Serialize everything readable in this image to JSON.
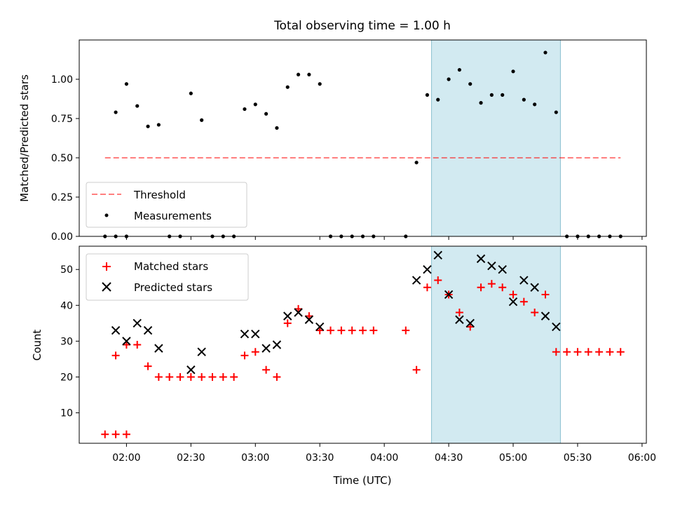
{
  "chart_data": [
    {
      "type": "scatter",
      "title": "Total observing time = 1.00 h",
      "xlabel": "",
      "ylabel": "Matched/Predicted stars",
      "xlim": [
        "01:38",
        "06:02"
      ],
      "ylim": [
        0,
        1.25
      ],
      "grid": false,
      "legend": "lower-left",
      "highlight_span": [
        "04:22",
        "05:22"
      ],
      "highlight_color": "#add8e6",
      "yticks": [
        "0.00",
        "0.25",
        "0.50",
        "0.75",
        "1.00"
      ],
      "threshold": {
        "name": "Threshold",
        "value": 0.5,
        "x_range": [
          "01:50",
          "05:50"
        ],
        "color": "#ff0000"
      },
      "series": [
        {
          "name": "Measurements",
          "marker": "dot",
          "color": "#000000",
          "points": [
            [
              "01:50",
              0.0
            ],
            [
              "01:55",
              0.0
            ],
            [
              "02:00",
              0.0
            ],
            [
              "01:55",
              0.79
            ],
            [
              "02:00",
              0.97
            ],
            [
              "02:05",
              0.83
            ],
            [
              "02:10",
              0.7
            ],
            [
              "02:15",
              0.71
            ],
            [
              "02:20",
              0.0
            ],
            [
              "02:25",
              0.0
            ],
            [
              "02:30",
              0.91
            ],
            [
              "02:35",
              0.74
            ],
            [
              "02:40",
              0.0
            ],
            [
              "02:45",
              0.0
            ],
            [
              "02:50",
              0.0
            ],
            [
              "02:55",
              0.81
            ],
            [
              "03:00",
              0.84
            ],
            [
              "03:05",
              0.78
            ],
            [
              "03:10",
              0.69
            ],
            [
              "03:15",
              0.95
            ],
            [
              "03:20",
              1.03
            ],
            [
              "03:25",
              1.03
            ],
            [
              "03:30",
              0.97
            ],
            [
              "03:35",
              0.0
            ],
            [
              "03:40",
              0.0
            ],
            [
              "03:45",
              0.0
            ],
            [
              "03:50",
              0.0
            ],
            [
              "03:55",
              0.0
            ],
            [
              "04:10",
              0.0
            ],
            [
              "04:15",
              0.47
            ],
            [
              "04:20",
              0.9
            ],
            [
              "04:25",
              0.87
            ],
            [
              "04:30",
              1.0
            ],
            [
              "04:35",
              1.06
            ],
            [
              "04:40",
              0.97
            ],
            [
              "04:45",
              0.85
            ],
            [
              "04:50",
              0.9
            ],
            [
              "04:55",
              0.9
            ],
            [
              "05:00",
              1.05
            ],
            [
              "05:05",
              0.87
            ],
            [
              "05:10",
              0.84
            ],
            [
              "05:15",
              1.17
            ],
            [
              "05:20",
              0.79
            ],
            [
              "05:25",
              0.0
            ],
            [
              "05:30",
              0.0
            ],
            [
              "05:35",
              0.0
            ],
            [
              "05:40",
              0.0
            ],
            [
              "05:45",
              0.0
            ],
            [
              "05:50",
              0.0
            ]
          ]
        }
      ]
    },
    {
      "type": "scatter",
      "title": "",
      "xlabel": "Time (UTC)",
      "ylabel": "Count",
      "xlim": [
        "01:38",
        "06:02"
      ],
      "ylim": [
        1.5,
        56.5
      ],
      "grid": false,
      "legend": "upper-left",
      "highlight_span": [
        "04:22",
        "05:22"
      ],
      "highlight_color": "#add8e6",
      "yticks": [
        "10",
        "20",
        "30",
        "40",
        "50"
      ],
      "xticks": [
        "02:00",
        "02:30",
        "03:00",
        "03:30",
        "04:00",
        "04:30",
        "05:00",
        "05:30",
        "06:00"
      ],
      "series": [
        {
          "name": "Matched stars",
          "marker": "plus",
          "color": "#ff0000",
          "points": [
            [
              "01:50",
              4
            ],
            [
              "01:55",
              4
            ],
            [
              "02:00",
              4
            ],
            [
              "01:55",
              26
            ],
            [
              "02:00",
              29
            ],
            [
              "02:05",
              29
            ],
            [
              "02:10",
              23
            ],
            [
              "02:15",
              20
            ],
            [
              "02:20",
              20
            ],
            [
              "02:25",
              20
            ],
            [
              "02:30",
              20
            ],
            [
              "02:35",
              20
            ],
            [
              "02:40",
              20
            ],
            [
              "02:45",
              20
            ],
            [
              "02:50",
              20
            ],
            [
              "02:55",
              26
            ],
            [
              "03:00",
              27
            ],
            [
              "03:05",
              22
            ],
            [
              "03:10",
              20
            ],
            [
              "03:15",
              35
            ],
            [
              "03:20",
              39
            ],
            [
              "03:25",
              37
            ],
            [
              "03:30",
              33
            ],
            [
              "03:35",
              33
            ],
            [
              "03:40",
              33
            ],
            [
              "03:45",
              33
            ],
            [
              "03:50",
              33
            ],
            [
              "03:55",
              33
            ],
            [
              "04:10",
              33
            ],
            [
              "04:15",
              22
            ],
            [
              "04:20",
              45
            ],
            [
              "04:25",
              47
            ],
            [
              "04:30",
              43
            ],
            [
              "04:35",
              38
            ],
            [
              "04:40",
              34
            ],
            [
              "04:45",
              45
            ],
            [
              "04:50",
              46
            ],
            [
              "04:55",
              45
            ],
            [
              "05:00",
              43
            ],
            [
              "05:05",
              41
            ],
            [
              "05:10",
              38
            ],
            [
              "05:15",
              43
            ],
            [
              "05:20",
              27
            ],
            [
              "05:25",
              27
            ],
            [
              "05:30",
              27
            ],
            [
              "05:35",
              27
            ],
            [
              "05:40",
              27
            ],
            [
              "05:45",
              27
            ],
            [
              "05:50",
              27
            ]
          ]
        },
        {
          "name": "Predicted stars",
          "marker": "x",
          "color": "#000000",
          "points": [
            [
              "01:55",
              33
            ],
            [
              "02:00",
              30
            ],
            [
              "02:05",
              35
            ],
            [
              "02:10",
              33
            ],
            [
              "02:15",
              28
            ],
            [
              "02:30",
              22
            ],
            [
              "02:35",
              27
            ],
            [
              "02:55",
              32
            ],
            [
              "03:00",
              32
            ],
            [
              "03:05",
              28
            ],
            [
              "03:10",
              29
            ],
            [
              "03:15",
              37
            ],
            [
              "03:20",
              38
            ],
            [
              "03:25",
              36
            ],
            [
              "03:30",
              34
            ],
            [
              "04:15",
              47
            ],
            [
              "04:20",
              50
            ],
            [
              "04:25",
              54
            ],
            [
              "04:30",
              43
            ],
            [
              "04:35",
              36
            ],
            [
              "04:40",
              35
            ],
            [
              "04:45",
              53
            ],
            [
              "04:50",
              51
            ],
            [
              "04:55",
              50
            ],
            [
              "05:00",
              41
            ],
            [
              "05:05",
              47
            ],
            [
              "05:10",
              45
            ],
            [
              "05:15",
              37
            ],
            [
              "05:20",
              34
            ]
          ]
        }
      ]
    }
  ]
}
